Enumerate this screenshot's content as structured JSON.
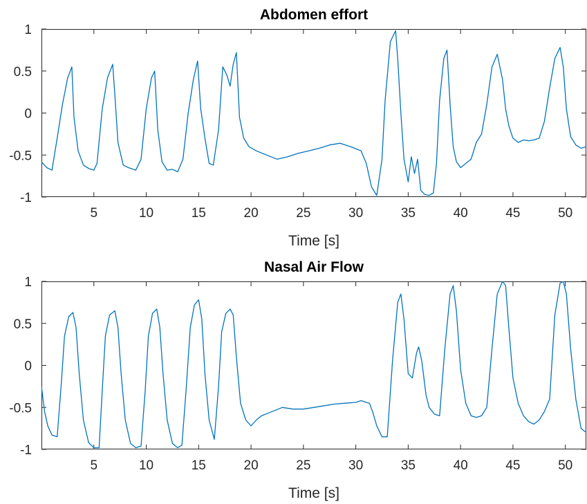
{
  "chart_data": [
    {
      "type": "line",
      "title": "Abdomen effort",
      "xlabel": "Time [s]",
      "ylabel": "",
      "xlim": [
        0,
        52
      ],
      "ylim": [
        -1,
        1
      ],
      "xticks": [
        5,
        10,
        15,
        20,
        25,
        30,
        35,
        40,
        45,
        50
      ],
      "yticks": [
        -1,
        -0.5,
        0,
        0.5,
        1
      ],
      "xtick_labels": [
        "5",
        "10",
        "15",
        "20",
        "25",
        "30",
        "35",
        "40",
        "45",
        "50"
      ],
      "ytick_labels": [
        "-1",
        "-0.5",
        "0",
        "0.5",
        "1"
      ],
      "grid": false,
      "color": "#0072BD",
      "series": [
        {
          "x": [
            0,
            0.5,
            1.0,
            1.5,
            2.0,
            2.5,
            2.9,
            3.1,
            3.5,
            4.0,
            4.5,
            5.0,
            5.3,
            5.8,
            6.3,
            6.8,
            7.0,
            7.3,
            7.8,
            8.3,
            9.0,
            9.5,
            10.0,
            10.5,
            10.8,
            11.1,
            11.5,
            12.0,
            12.5,
            13.0,
            13.5,
            14.0,
            14.5,
            14.9,
            15.2,
            15.6,
            16.0,
            16.4,
            16.9,
            17.3,
            17.7,
            18.0,
            18.3,
            18.6,
            18.9,
            19.3,
            19.8,
            20.5,
            21.5,
            22.5,
            23.5,
            24.5,
            25.5,
            26.5,
            27.5,
            28.5,
            29.5,
            30.5,
            31.0,
            31.5,
            32.0,
            32.5,
            32.8,
            33.3,
            33.8,
            34.0,
            34.3,
            34.6,
            35.0,
            35.3,
            35.6,
            35.9,
            36.2,
            36.6,
            37.0,
            37.4,
            37.7,
            38.0,
            38.4,
            38.7,
            39.0,
            39.3,
            39.6,
            40.0,
            40.5,
            41.0,
            41.5,
            42.0,
            42.5,
            43.0,
            43.5,
            44.0,
            44.3,
            44.6,
            45.0,
            45.5,
            46.0,
            46.5,
            47.0,
            47.5,
            48.0,
            48.5,
            49.0,
            49.5,
            49.8,
            50.1,
            50.5,
            51.0,
            51.5,
            52.0
          ],
          "y": [
            -0.58,
            -0.65,
            -0.68,
            -0.3,
            0.1,
            0.42,
            0.55,
            -0.05,
            -0.45,
            -0.62,
            -0.66,
            -0.68,
            -0.6,
            0.05,
            0.42,
            0.58,
            0.22,
            -0.35,
            -0.62,
            -0.65,
            -0.68,
            -0.55,
            0.05,
            0.42,
            0.5,
            -0.2,
            -0.58,
            -0.68,
            -0.67,
            -0.7,
            -0.55,
            0.0,
            0.4,
            0.62,
            0.05,
            -0.3,
            -0.6,
            -0.62,
            -0.2,
            0.55,
            0.45,
            0.32,
            0.58,
            0.72,
            -0.05,
            -0.3,
            -0.4,
            -0.45,
            -0.5,
            -0.55,
            -0.52,
            -0.48,
            -0.45,
            -0.42,
            -0.38,
            -0.36,
            -0.4,
            -0.45,
            -0.6,
            -0.88,
            -0.98,
            -0.55,
            0.15,
            0.85,
            0.98,
            0.65,
            0.0,
            -0.55,
            -0.82,
            -0.52,
            -0.72,
            -0.55,
            -0.92,
            -0.97,
            -0.98,
            -0.95,
            -0.6,
            0.15,
            0.65,
            0.75,
            0.1,
            -0.4,
            -0.58,
            -0.65,
            -0.6,
            -0.55,
            -0.35,
            -0.25,
            0.1,
            0.55,
            0.7,
            0.4,
            0.05,
            -0.15,
            -0.3,
            -0.35,
            -0.32,
            -0.33,
            -0.32,
            -0.3,
            -0.1,
            0.3,
            0.65,
            0.78,
            0.55,
            0.05,
            -0.28,
            -0.38,
            -0.42,
            -0.4
          ]
        }
      ]
    },
    {
      "type": "line",
      "title": "Nasal Air Flow",
      "xlabel": "Time [s]",
      "ylabel": "",
      "xlim": [
        0,
        52
      ],
      "ylim": [
        -1,
        1
      ],
      "xticks": [
        5,
        10,
        15,
        20,
        25,
        30,
        35,
        40,
        45,
        50
      ],
      "yticks": [
        -1,
        -0.5,
        0,
        0.5,
        1
      ],
      "xtick_labels": [
        "5",
        "10",
        "15",
        "20",
        "25",
        "30",
        "35",
        "40",
        "45",
        "50"
      ],
      "ytick_labels": [
        "-1",
        "-0.5",
        "0",
        "0.5",
        "1"
      ],
      "grid": false,
      "color": "#0072BD",
      "series": [
        {
          "x": [
            0,
            0.3,
            0.6,
            1.0,
            1.5,
            1.9,
            2.2,
            2.6,
            3.0,
            3.3,
            3.6,
            4.0,
            4.5,
            5.0,
            5.5,
            5.8,
            6.1,
            6.5,
            7.0,
            7.3,
            7.6,
            8.0,
            8.5,
            9.0,
            9.5,
            9.9,
            10.2,
            10.6,
            11.0,
            11.3,
            11.6,
            12.0,
            12.5,
            13.0,
            13.4,
            13.8,
            14.2,
            14.6,
            15.0,
            15.3,
            15.6,
            16.0,
            16.5,
            16.9,
            17.2,
            17.6,
            18.0,
            18.3,
            18.6,
            19.0,
            19.5,
            20.0,
            20.5,
            21.0,
            22.0,
            23.0,
            24.0,
            25.0,
            26.0,
            27.0,
            28.0,
            29.0,
            30.0,
            30.5,
            31.0,
            31.3,
            31.6,
            32.0,
            32.5,
            33.0,
            33.5,
            34.0,
            34.3,
            34.6,
            35.0,
            35.4,
            35.8,
            36.0,
            36.3,
            36.7,
            37.0,
            37.5,
            38.0,
            38.5,
            39.0,
            39.3,
            39.6,
            40.0,
            40.5,
            41.0,
            41.5,
            42.0,
            42.5,
            43.0,
            43.5,
            44.0,
            44.3,
            44.6,
            45.0,
            45.5,
            46.0,
            46.5,
            47.0,
            47.5,
            48.0,
            48.5,
            49.0,
            49.5,
            49.8,
            50.1,
            50.5,
            51.0,
            51.5,
            52.0
          ],
          "y": [
            -0.25,
            -0.55,
            -0.72,
            -0.83,
            -0.85,
            -0.2,
            0.35,
            0.58,
            0.63,
            0.45,
            -0.1,
            -0.65,
            -0.92,
            -0.98,
            -0.98,
            -0.3,
            0.35,
            0.6,
            0.65,
            0.45,
            -0.1,
            -0.65,
            -0.93,
            -0.98,
            -0.96,
            -0.3,
            0.35,
            0.62,
            0.67,
            0.45,
            -0.1,
            -0.65,
            -0.93,
            -0.98,
            -0.95,
            -0.3,
            0.45,
            0.72,
            0.78,
            0.55,
            -0.1,
            -0.65,
            -0.88,
            -0.25,
            0.4,
            0.62,
            0.67,
            0.6,
            0.1,
            -0.45,
            -0.65,
            -0.72,
            -0.65,
            -0.6,
            -0.55,
            -0.5,
            -0.52,
            -0.52,
            -0.5,
            -0.48,
            -0.46,
            -0.45,
            -0.44,
            -0.42,
            -0.44,
            -0.45,
            -0.55,
            -0.72,
            -0.85,
            -0.85,
            0.05,
            0.75,
            0.85,
            0.55,
            -0.1,
            -0.15,
            0.15,
            0.22,
            0.05,
            -0.35,
            -0.5,
            -0.58,
            -0.6,
            0.2,
            0.85,
            0.95,
            0.65,
            -0.05,
            -0.45,
            -0.6,
            -0.62,
            -0.6,
            -0.5,
            0.2,
            0.85,
            1.0,
            0.95,
            0.45,
            -0.15,
            -0.45,
            -0.6,
            -0.67,
            -0.7,
            -0.65,
            -0.55,
            -0.4,
            0.6,
            0.98,
            1.0,
            0.85,
            0.2,
            -0.4,
            -0.75,
            -0.8
          ]
        }
      ]
    }
  ]
}
